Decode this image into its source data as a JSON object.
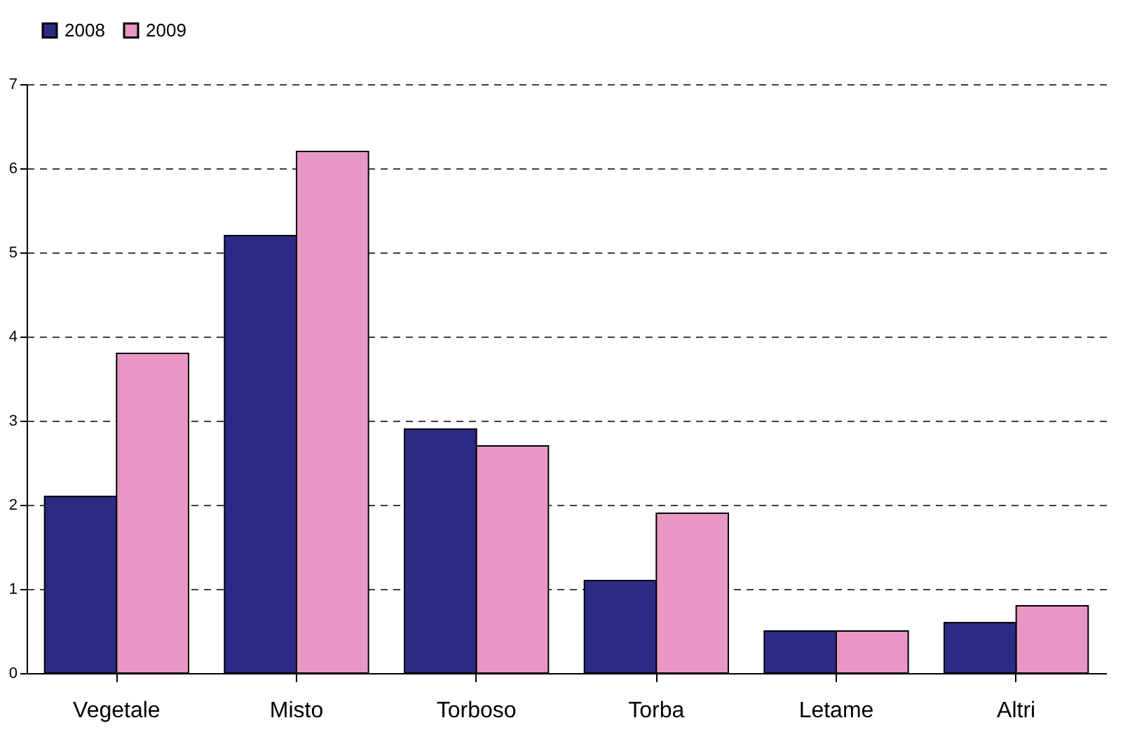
{
  "chart_data": {
    "type": "bar",
    "categories": [
      "Vegetale",
      "Misto",
      "Torboso",
      "Torba",
      "Letame",
      "Altri"
    ],
    "series": [
      {
        "name": "2008",
        "color": "#2b2b86",
        "values": [
          2.1,
          5.2,
          2.9,
          1.1,
          0.5,
          0.6
        ]
      },
      {
        "name": "2009",
        "color": "#e896c4",
        "values": [
          3.8,
          6.2,
          2.7,
          1.9,
          0.5,
          0.8
        ]
      }
    ],
    "ylim": [
      0,
      7
    ],
    "yticks": [
      0,
      1,
      2,
      3,
      4,
      5,
      6,
      7
    ],
    "grid": "y",
    "legend": "top"
  }
}
